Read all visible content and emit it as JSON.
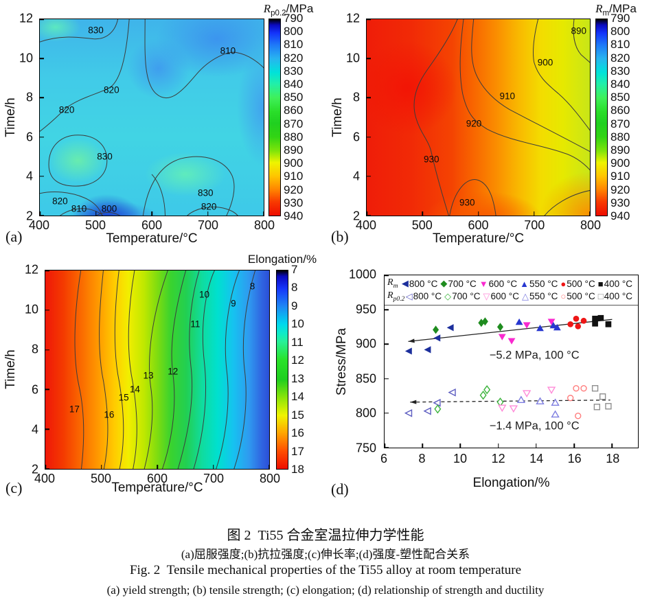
{
  "panels": {
    "a": "(a)",
    "b": "(b)",
    "c": "(c)",
    "d": "(d)"
  },
  "caption": {
    "zh_title": "图 2  Ti55 合金室温拉伸力学性能",
    "zh_sub": "(a)屈服强度;(b)抗拉强度;(c)伸长率;(d)强度-塑性配合关系",
    "en_title": "Fig. 2  Tensile mechanical properties of the Ti55 alloy at room temperature",
    "en_sub": "(a) yield strength; (b) tensile strength; (c) elongation; (d) relationship of strength and ductility"
  },
  "chart_data": [
    {
      "id": "a",
      "type": "heatmap",
      "subject": "yield strength contour map",
      "xlabel": "Temperature/°C",
      "ylabel": "Time/h",
      "x_ticks": [
        400,
        500,
        600,
        700,
        800
      ],
      "y_ticks": [
        2,
        4,
        6,
        8,
        10,
        12
      ],
      "xlim": [
        400,
        800
      ],
      "ylim": [
        2,
        12
      ],
      "colorbar": {
        "title_pre": "R",
        "title_sub": "p0.2",
        "title_post": "/MPa",
        "ticks": [
          790,
          800,
          810,
          820,
          830,
          840,
          850,
          860,
          870,
          880,
          890,
          900,
          910,
          920,
          930,
          940
        ],
        "top_value": 790,
        "bottom_value": 940
      },
      "contour_labels": [
        {
          "text": "830",
          "x": 25,
          "y": 5.5
        },
        {
          "text": "810",
          "x": 84,
          "y": 16
        },
        {
          "text": "820",
          "x": 32,
          "y": 36
        },
        {
          "text": "820",
          "x": 12,
          "y": 46
        },
        {
          "text": "830",
          "x": 29,
          "y": 70
        },
        {
          "text": "830",
          "x": 74,
          "y": 88.5
        },
        {
          "text": "820",
          "x": 9,
          "y": 92.5
        },
        {
          "text": "810",
          "x": 17.5,
          "y": 96.5
        },
        {
          "text": "800",
          "x": 31,
          "y": 96.5
        },
        {
          "text": "820",
          "x": 75.5,
          "y": 95.5
        }
      ]
    },
    {
      "id": "b",
      "type": "heatmap",
      "subject": "tensile strength contour map",
      "xlabel": "Temperature/°C",
      "ylabel": "Time/h",
      "x_ticks": [
        400,
        500,
        600,
        700,
        800
      ],
      "y_ticks": [
        2,
        4,
        6,
        8,
        10,
        12
      ],
      "xlim": [
        400,
        800
      ],
      "ylim": [
        2,
        12
      ],
      "colorbar": {
        "title_pre": "R",
        "title_sub": "m",
        "title_post": "/MPa",
        "ticks": [
          790,
          800,
          810,
          820,
          830,
          840,
          850,
          860,
          870,
          880,
          890,
          900,
          910,
          920,
          930,
          940
        ],
        "top_value": 790,
        "bottom_value": 940
      },
      "contour_labels": [
        {
          "text": "890",
          "x": 95,
          "y": 6
        },
        {
          "text": "900",
          "x": 80,
          "y": 22
        },
        {
          "text": "910",
          "x": 63,
          "y": 39
        },
        {
          "text": "920",
          "x": 48,
          "y": 53
        },
        {
          "text": "930",
          "x": 29,
          "y": 71.5
        },
        {
          "text": "930",
          "x": 45,
          "y": 93.5
        }
      ]
    },
    {
      "id": "c",
      "type": "heatmap",
      "subject": "elongation contour map",
      "xlabel": "Temperature/°C",
      "ylabel": "Time/h",
      "x_ticks": [
        400,
        500,
        600,
        700,
        800
      ],
      "y_ticks": [
        2,
        4,
        6,
        8,
        10,
        12
      ],
      "xlim": [
        400,
        800
      ],
      "ylim": [
        2,
        12
      ],
      "colorbar": {
        "title_text": "Elongation/%",
        "ticks": [
          7,
          8,
          9,
          10,
          11,
          12,
          13,
          14,
          15,
          16,
          17,
          18
        ],
        "top_value": 7,
        "bottom_value": 18
      },
      "contour_labels": [
        {
          "text": "8",
          "x": 92.5,
          "y": 8
        },
        {
          "text": "9",
          "x": 84,
          "y": 16.5
        },
        {
          "text": "10",
          "x": 71,
          "y": 12
        },
        {
          "text": "11",
          "x": 67,
          "y": 27
        },
        {
          "text": "12",
          "x": 57,
          "y": 51
        },
        {
          "text": "13",
          "x": 46,
          "y": 53
        },
        {
          "text": "14",
          "x": 40,
          "y": 60
        },
        {
          "text": "15",
          "x": 35,
          "y": 64
        },
        {
          "text": "16",
          "x": 28.5,
          "y": 72.5
        },
        {
          "text": "17",
          "x": 13,
          "y": 70
        }
      ]
    },
    {
      "id": "d",
      "type": "scatter",
      "subject": "strength vs ductility",
      "xlabel": "Elongation/%",
      "ylabel": "Stress/MPa",
      "x_ticks": [
        6,
        8,
        10,
        12,
        14,
        16,
        18
      ],
      "y_ticks": [
        750,
        800,
        850,
        900,
        950,
        1000
      ],
      "xlim": [
        6,
        19.36
      ],
      "ylim": [
        750,
        1000
      ],
      "legend_rows": [
        {
          "series_pre": "R",
          "series_sub": "m"
        },
        {
          "series_pre": "R",
          "series_sub": "p0.2"
        }
      ],
      "series": [
        {
          "label": "800 °C",
          "marker": "tri-left",
          "filled": true,
          "color": "#1c2f9c",
          "points": [
            [
              7.3,
              890
            ],
            [
              8.3,
              892
            ],
            [
              8.8,
              909
            ],
            [
              9.5,
              924
            ]
          ]
        },
        {
          "label": "700 °C",
          "marker": "diamond",
          "filled": true,
          "color": "#1f8c1f",
          "points": [
            [
              8.7,
              921
            ],
            [
              11.1,
              931
            ],
            [
              11.3,
              933
            ],
            [
              12.1,
              925
            ]
          ]
        },
        {
          "label": "600 °C",
          "marker": "tri-down",
          "filled": true,
          "color": "#f929cf",
          "points": [
            [
              12.2,
              911
            ],
            [
              12.7,
              905
            ],
            [
              13.5,
              928
            ],
            [
              14.8,
              933
            ]
          ]
        },
        {
          "label": "550 °C",
          "marker": "tri-up",
          "filled": true,
          "color": "#2737d0",
          "points": [
            [
              13.1,
              932
            ],
            [
              14.2,
              923
            ],
            [
              14.9,
              927
            ],
            [
              15.1,
              924
            ]
          ]
        },
        {
          "label": "500 °C",
          "marker": "circle",
          "filled": true,
          "color": "#ee1616",
          "points": [
            [
              15.8,
              929
            ],
            [
              16.1,
              937
            ],
            [
              16.2,
              926
            ],
            [
              16.5,
              934
            ]
          ]
        },
        {
          "label": "400 °C",
          "marker": "square",
          "filled": true,
          "color": "#111111",
          "points": [
            [
              17.1,
              937
            ],
            [
              17.4,
              938
            ],
            [
              17.1,
              930
            ],
            [
              17.8,
              929
            ]
          ]
        },
        {
          "label": "800 °C",
          "marker": "tri-left",
          "filled": false,
          "color": "#5c5cc0",
          "points": [
            [
              7.3,
              800
            ],
            [
              8.3,
              803
            ],
            [
              8.8,
              815
            ],
            [
              9.6,
              830
            ]
          ]
        },
        {
          "label": "700 °C",
          "marker": "diamond",
          "filled": false,
          "color": "#3cb43c",
          "points": [
            [
              8.8,
              806
            ],
            [
              11.2,
              826
            ],
            [
              11.4,
              834
            ],
            [
              12.1,
              816
            ]
          ]
        },
        {
          "label": "600 °C",
          "marker": "tri-down",
          "filled": false,
          "color": "#ff8ad8",
          "points": [
            [
              12.2,
              808
            ],
            [
              12.8,
              807
            ],
            [
              13.5,
              829
            ],
            [
              14.8,
              834
            ]
          ]
        },
        {
          "label": "550 °C",
          "marker": "tri-up",
          "filled": false,
          "color": "#7d7de0",
          "points": [
            [
              13.2,
              819
            ],
            [
              14.2,
              817
            ],
            [
              15.0,
              815
            ],
            [
              15.0,
              798
            ]
          ]
        },
        {
          "label": "500 °C",
          "marker": "circle",
          "filled": false,
          "color": "#ff7d7d",
          "points": [
            [
              15.8,
              822
            ],
            [
              16.1,
              836
            ],
            [
              16.5,
              836
            ],
            [
              16.2,
              796
            ]
          ]
        },
        {
          "label": "400 °C",
          "marker": "square",
          "filled": false,
          "color": "#8f8f8f",
          "points": [
            [
              17.1,
              836
            ],
            [
              17.5,
              824
            ],
            [
              17.2,
              809
            ],
            [
              17.8,
              810
            ]
          ]
        }
      ],
      "trend_lines": [
        {
          "style": "solid",
          "from": [
            7.25,
            904
          ],
          "to": [
            18.0,
            936
          ],
          "label": "−5.2 MPa, 100 °C",
          "label_x": 13.9,
          "label_y": 883
        },
        {
          "style": "dashed",
          "from": [
            7.35,
            816
          ],
          "to": [
            17.9,
            819
          ],
          "label": "−1.4 MPa, 100 °C",
          "label_x": 13.9,
          "label_y": 781
        }
      ]
    }
  ]
}
